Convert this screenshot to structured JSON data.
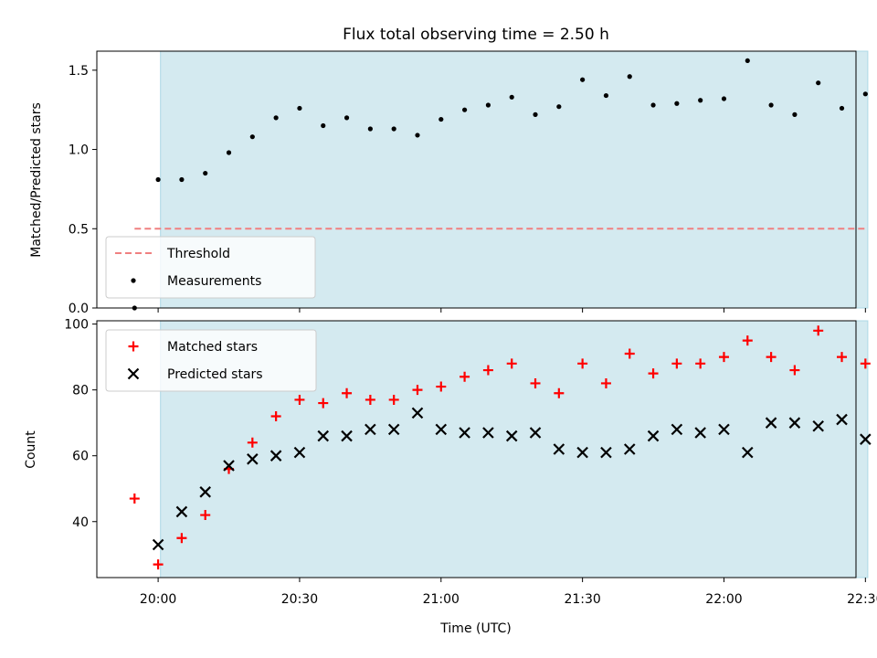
{
  "chart_data": {
    "title": "Flux total observing time = 2.50 h",
    "xlabel": "Time (UTC)",
    "x_ticks": [
      "20:00",
      "20:30",
      "21:00",
      "21:30",
      "22:00",
      "22:30"
    ],
    "x_tick_minutes": [
      0,
      30,
      60,
      90,
      120,
      150
    ],
    "xlim_minutes": [
      -13,
      148
    ],
    "time_origin": "20:00",
    "observing_window_minutes": [
      0.5,
      150.5
    ],
    "shade_color": "#d4eaf0",
    "panels": [
      {
        "type": "scatter",
        "ylabel": "Matched/Predicted stars",
        "ylim": [
          0,
          1.62
        ],
        "y_ticks": [
          0.0,
          0.5,
          1.0,
          1.5
        ],
        "y_tick_labels": [
          "0.0",
          "0.5",
          "1.0",
          "1.5"
        ],
        "legend": "lower-left",
        "threshold": {
          "name": "Threshold",
          "value": 0.5,
          "x_range_minutes": [
            -5,
            150
          ],
          "color": "#f08080"
        },
        "series": [
          {
            "name": "Measurements",
            "marker": "dot",
            "color": "#000000",
            "x_minutes": [
              -5,
              0,
              5,
              10,
              15,
              20,
              25,
              30,
              35,
              40,
              45,
              50,
              55,
              60,
              65,
              70,
              75,
              80,
              85,
              90,
              95,
              100,
              105,
              110,
              115,
              120,
              125,
              130,
              135,
              140,
              145,
              150
            ],
            "values": [
              0.0,
              0.81,
              0.81,
              0.85,
              0.98,
              1.08,
              1.2,
              1.26,
              1.15,
              1.2,
              1.13,
              1.13,
              1.09,
              1.19,
              1.25,
              1.28,
              1.33,
              1.22,
              1.27,
              1.44,
              1.34,
              1.46,
              1.28,
              1.29,
              1.31,
              1.32,
              1.56,
              1.28,
              1.22,
              1.42,
              1.26,
              1.35
            ]
          }
        ]
      },
      {
        "type": "scatter",
        "ylabel": "Count",
        "ylim": [
          23,
          101
        ],
        "y_ticks": [
          40,
          60,
          80,
          100
        ],
        "y_tick_labels": [
          "40",
          "60",
          "80",
          "100"
        ],
        "legend": "top-left",
        "series": [
          {
            "name": "Matched stars",
            "marker": "plus",
            "color": "#ff0000",
            "x_minutes": [
              -5,
              0,
              5,
              10,
              15,
              20,
              25,
              30,
              35,
              40,
              45,
              50,
              55,
              60,
              65,
              70,
              75,
              80,
              85,
              90,
              95,
              100,
              105,
              110,
              115,
              120,
              125,
              130,
              135,
              140,
              145,
              150
            ],
            "values": [
              47,
              27,
              35,
              42,
              56,
              64,
              72,
              77,
              76,
              79,
              77,
              77,
              80,
              81,
              84,
              86,
              88,
              82,
              79,
              88,
              82,
              91,
              85,
              88,
              88,
              90,
              95,
              90,
              86,
              98,
              90,
              88
            ]
          },
          {
            "name": "Predicted stars",
            "marker": "x",
            "color": "#000000",
            "x_minutes": [
              0,
              5,
              10,
              15,
              20,
              25,
              30,
              35,
              40,
              45,
              50,
              55,
              60,
              65,
              70,
              75,
              80,
              85,
              90,
              95,
              100,
              105,
              110,
              115,
              120,
              125,
              130,
              135,
              140,
              145,
              150
            ],
            "values": [
              33,
              43,
              49,
              57,
              59,
              60,
              61,
              66,
              66,
              68,
              68,
              73,
              68,
              67,
              67,
              66,
              67,
              62,
              61,
              61,
              62,
              66,
              68,
              67,
              68,
              61,
              70,
              70,
              69,
              71,
              65
            ]
          }
        ]
      }
    ]
  }
}
